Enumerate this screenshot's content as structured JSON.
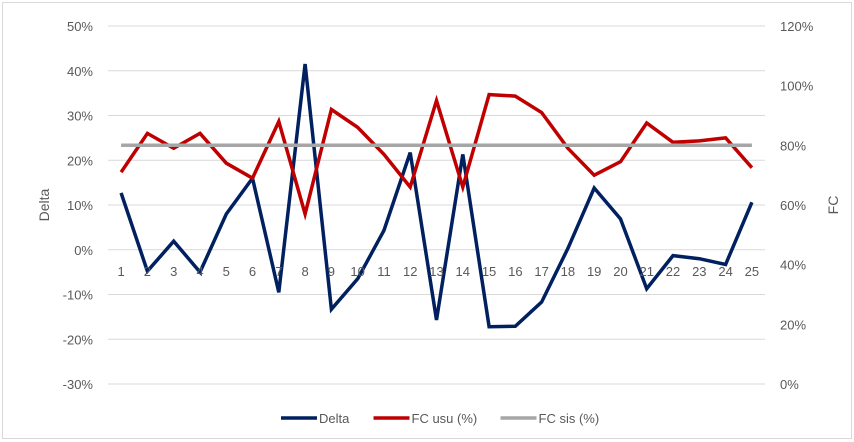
{
  "chart_data": {
    "type": "line",
    "categories": [
      "1",
      "2",
      "3",
      "4",
      "5",
      "6",
      "7",
      "8",
      "9",
      "10",
      "11",
      "12",
      "13",
      "14",
      "15",
      "16",
      "17",
      "18",
      "19",
      "20",
      "21",
      "22",
      "23",
      "24",
      "25"
    ],
    "ylabel": "Delta",
    "y2label": "FC",
    "ylim": [
      -0.3,
      0.5
    ],
    "y2lim": [
      0.0,
      1.2
    ],
    "yticks": [
      "50%",
      "40%",
      "30%",
      "20%",
      "10%",
      "0%",
      "-10%",
      "-20%",
      "-30%"
    ],
    "y2ticks": [
      "120%",
      "100%",
      "80%",
      "60%",
      "40%",
      "20%",
      "0%"
    ],
    "grid": true,
    "legend_position": "bottom",
    "series": [
      {
        "name": "Delta",
        "axis": "left",
        "color": "#002060",
        "values": [
          0.127,
          -0.048,
          0.019,
          -0.05,
          0.08,
          0.16,
          -0.095,
          0.415,
          -0.133,
          -0.065,
          0.043,
          0.217,
          -0.157,
          0.213,
          -0.172,
          -0.171,
          -0.117,
          0.003,
          0.138,
          0.069,
          -0.087,
          -0.013,
          -0.02,
          -0.033,
          0.106
        ]
      },
      {
        "name": "FC usu (%)",
        "axis": "right",
        "color": "#c00000",
        "values": [
          0.71,
          0.84,
          0.79,
          0.84,
          0.74,
          0.69,
          0.88,
          0.57,
          0.92,
          0.86,
          0.77,
          0.66,
          0.95,
          0.66,
          0.97,
          0.965,
          0.91,
          0.79,
          0.7,
          0.745,
          0.875,
          0.81,
          0.815,
          0.825,
          0.725
        ]
      },
      {
        "name": "FC sis (%)",
        "axis": "right",
        "color": "#a6a6a6",
        "values": [
          0.8,
          0.8,
          0.8,
          0.8,
          0.8,
          0.8,
          0.8,
          0.8,
          0.8,
          0.8,
          0.8,
          0.8,
          0.8,
          0.8,
          0.8,
          0.8,
          0.8,
          0.8,
          0.8,
          0.8,
          0.8,
          0.8,
          0.8,
          0.8,
          0.8
        ]
      }
    ]
  }
}
